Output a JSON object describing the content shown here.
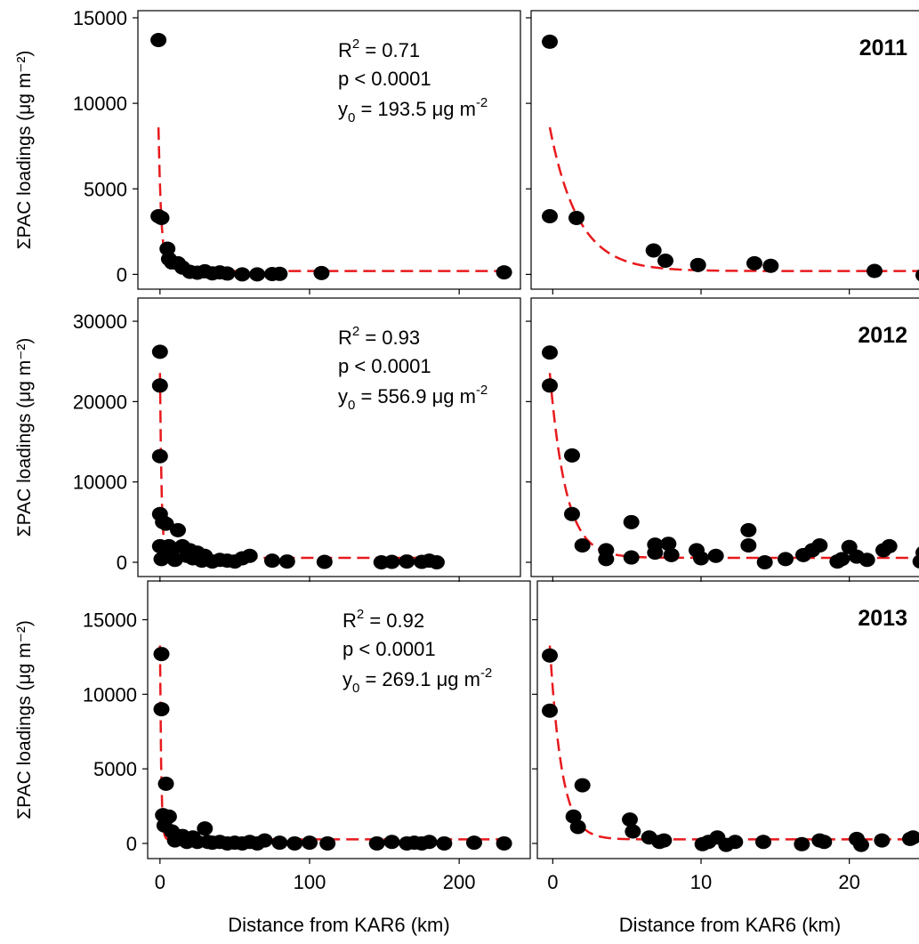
{
  "chart_data": [
    {
      "panel": "2011-full",
      "type": "scatter",
      "annotation": "",
      "ylabel": "ΣPAC loadings (μg m⁻²)",
      "xlabel": "",
      "xlim": [
        -10,
        235
      ],
      "ylim": [
        -500,
        15000
      ],
      "yticks": [
        0,
        5000,
        10000,
        15000
      ],
      "xticks": [
        0,
        100,
        200
      ],
      "show_x_labels": false,
      "stats": {
        "r2": "0.71",
        "p": "p < 0.0001",
        "y0": "193.5"
      },
      "points": [
        [
          -1,
          13700
        ],
        [
          -1,
          3400
        ],
        [
          1,
          3300
        ],
        [
          5,
          1500
        ],
        [
          6,
          900
        ],
        [
          8,
          700
        ],
        [
          12,
          650
        ],
        [
          15,
          400
        ],
        [
          20,
          150
        ],
        [
          25,
          100
        ],
        [
          30,
          180
        ],
        [
          35,
          60
        ],
        [
          40,
          120
        ],
        [
          45,
          50
        ],
        [
          55,
          0
        ],
        [
          65,
          0
        ],
        [
          75,
          20
        ],
        [
          80,
          30
        ],
        [
          108,
          80
        ],
        [
          230,
          120
        ]
      ],
      "fit": {
        "type": "exp_decay",
        "y0": 193.5,
        "A": 8400,
        "k": 0.52,
        "x_from": -1,
        "x_to": 230
      }
    },
    {
      "panel": "2011-zoom",
      "type": "scatter",
      "annotation": "2011",
      "xlabel": "",
      "xlim": [
        -0.8,
        25
      ],
      "ylim": [
        -500,
        15000
      ],
      "yticks": [
        0,
        5000,
        10000,
        15000
      ],
      "xticks": [
        0,
        10,
        20
      ],
      "show_x_labels": false,
      "show_y_labels": false,
      "points": [
        [
          -0.2,
          13600
        ],
        [
          -0.2,
          3400
        ],
        [
          1.6,
          3300
        ],
        [
          6.8,
          1400
        ],
        [
          7.6,
          800
        ],
        [
          9.8,
          550
        ],
        [
          13.6,
          650
        ],
        [
          14.7,
          500
        ],
        [
          21.7,
          200
        ],
        [
          25,
          -50
        ]
      ],
      "fit": {
        "type": "exp_decay",
        "y0": 193.5,
        "A": 8400,
        "k": 0.52,
        "x_from": -0.2,
        "x_to": 25
      }
    },
    {
      "panel": "2012-full",
      "type": "scatter",
      "annotation": "",
      "ylabel": "ΣPAC loadings (μg m⁻²)",
      "xlabel": "",
      "xlim": [
        -10,
        235
      ],
      "ylim": [
        -1000,
        32000
      ],
      "yticks": [
        0,
        10000,
        20000,
        30000
      ],
      "xticks": [
        0,
        100,
        200
      ],
      "show_x_labels": false,
      "stats": {
        "r2": "0.93",
        "p": "p < 0.0001",
        "y0": "556.9"
      },
      "points": [
        [
          0,
          26200
        ],
        [
          0,
          22000
        ],
        [
          0,
          13200
        ],
        [
          0,
          6000
        ],
        [
          2,
          5000
        ],
        [
          4,
          4800
        ],
        [
          6,
          2000
        ],
        [
          8,
          1500
        ],
        [
          12,
          4000
        ],
        [
          10,
          300
        ],
        [
          15,
          2000
        ],
        [
          18,
          800
        ],
        [
          20,
          1500
        ],
        [
          22,
          500
        ],
        [
          25,
          1200
        ],
        [
          28,
          200
        ],
        [
          30,
          800
        ],
        [
          35,
          100
        ],
        [
          40,
          300
        ],
        [
          45,
          200
        ],
        [
          50,
          100
        ],
        [
          55,
          500
        ],
        [
          60,
          800
        ],
        [
          75,
          200
        ],
        [
          85,
          100
        ],
        [
          110,
          50
        ],
        [
          148,
          0
        ],
        [
          155,
          50
        ],
        [
          165,
          100
        ],
        [
          175,
          50
        ],
        [
          180,
          200
        ],
        [
          185,
          0
        ],
        [
          0,
          2000
        ],
        [
          1,
          400
        ]
      ],
      "fit": {
        "type": "exp_decay",
        "y0": 556.9,
        "A": 23000,
        "k": 0.92,
        "x_from": 0,
        "x_to": 185
      }
    },
    {
      "panel": "2012-zoom",
      "type": "scatter",
      "annotation": "2012",
      "xlabel": "",
      "xlim": [
        -0.8,
        25
      ],
      "ylim": [
        -1000,
        32000
      ],
      "yticks": [
        0,
        10000,
        20000,
        30000
      ],
      "xticks": [
        0,
        10,
        20
      ],
      "show_x_labels": false,
      "show_y_labels": false,
      "points": [
        [
          -0.2,
          26100
        ],
        [
          -0.2,
          22000
        ],
        [
          1.3,
          13300
        ],
        [
          1.3,
          6000
        ],
        [
          2,
          2100
        ],
        [
          3.6,
          1500
        ],
        [
          3.6,
          400
        ],
        [
          5.3,
          5000
        ],
        [
          5.3,
          600
        ],
        [
          6.9,
          1200
        ],
        [
          6.9,
          2200
        ],
        [
          7.8,
          2300
        ],
        [
          8,
          900
        ],
        [
          9.7,
          1500
        ],
        [
          10,
          500
        ],
        [
          11,
          800
        ],
        [
          13.2,
          4000
        ],
        [
          13.2,
          2100
        ],
        [
          14.3,
          0
        ],
        [
          15.7,
          400
        ],
        [
          16.9,
          900
        ],
        [
          17.5,
          1500
        ],
        [
          18,
          2100
        ],
        [
          19.2,
          100
        ],
        [
          19.5,
          400
        ],
        [
          20,
          1900
        ],
        [
          20.5,
          700
        ],
        [
          21.2,
          300
        ],
        [
          22.3,
          1500
        ],
        [
          22.7,
          2000
        ],
        [
          24.8,
          100
        ],
        [
          25,
          1200
        ]
      ],
      "fit": {
        "type": "exp_decay",
        "y0": 556.9,
        "A": 23000,
        "k": 0.92,
        "x_from": -0.2,
        "x_to": 25
      }
    },
    {
      "panel": "2013-full",
      "type": "scatter",
      "annotation": "",
      "ylabel": "ΣPAC loadings (μg m⁻²)",
      "xlabel": "Distance from KAR6 (km)",
      "xlim": [
        -10,
        235
      ],
      "ylim": [
        -600,
        17000
      ],
      "yticks": [
        0,
        5000,
        10000,
        15000
      ],
      "xticks": [
        0,
        100,
        200
      ],
      "show_x_labels": true,
      "stats": {
        "r2": "0.92",
        "p": "p < 0.0001",
        "y0": "269.1"
      },
      "points": [
        [
          1,
          12700
        ],
        [
          1,
          9000
        ],
        [
          4,
          4000
        ],
        [
          2,
          1900
        ],
        [
          6,
          1800
        ],
        [
          3,
          1200
        ],
        [
          8,
          800
        ],
        [
          10,
          200
        ],
        [
          15,
          500
        ],
        [
          18,
          100
        ],
        [
          22,
          400
        ],
        [
          25,
          100
        ],
        [
          30,
          1000
        ],
        [
          32,
          100
        ],
        [
          35,
          50
        ],
        [
          40,
          100
        ],
        [
          45,
          0
        ],
        [
          50,
          50
        ],
        [
          55,
          0
        ],
        [
          60,
          100
        ],
        [
          65,
          0
        ],
        [
          70,
          200
        ],
        [
          80,
          50
        ],
        [
          90,
          0
        ],
        [
          100,
          50
        ],
        [
          112,
          0
        ],
        [
          145,
          0
        ],
        [
          155,
          100
        ],
        [
          165,
          0
        ],
        [
          170,
          50
        ],
        [
          175,
          0
        ],
        [
          180,
          100
        ],
        [
          190,
          0
        ],
        [
          210,
          50
        ],
        [
          230,
          0
        ]
      ],
      "fit": {
        "type": "exp_decay",
        "y0": 269.1,
        "A": 13000,
        "k": 1.25,
        "x_from": 0,
        "x_to": 230
      }
    },
    {
      "panel": "2013-zoom",
      "type": "scatter",
      "annotation": "2013",
      "xlabel": "Distance from KAR6 (km)",
      "xlim": [
        -0.8,
        25
      ],
      "ylim": [
        -600,
        17000
      ],
      "yticks": [
        0,
        5000,
        10000,
        15000
      ],
      "xticks": [
        0,
        10,
        20
      ],
      "show_x_labels": true,
      "show_y_labels": false,
      "points": [
        [
          -0.2,
          12600
        ],
        [
          -0.2,
          8900
        ],
        [
          1.4,
          1800
        ],
        [
          1.7,
          1100
        ],
        [
          2,
          3900
        ],
        [
          5.2,
          1600
        ],
        [
          5.4,
          800
        ],
        [
          6.5,
          400
        ],
        [
          7.2,
          100
        ],
        [
          7.5,
          200
        ],
        [
          10.1,
          -50
        ],
        [
          10.5,
          100
        ],
        [
          11.1,
          400
        ],
        [
          11.7,
          -100
        ],
        [
          12.3,
          100
        ],
        [
          14.2,
          100
        ],
        [
          16.8,
          -50
        ],
        [
          18,
          200
        ],
        [
          18.3,
          100
        ],
        [
          20.5,
          300
        ],
        [
          20.8,
          -100
        ],
        [
          22.2,
          200
        ],
        [
          24.1,
          300
        ],
        [
          24.3,
          400
        ]
      ],
      "fit": {
        "type": "exp_decay",
        "y0": 269.1,
        "A": 13000,
        "k": 1.25,
        "x_from": -0.2,
        "x_to": 25
      }
    }
  ],
  "labels": {
    "y0_unit": "μg m",
    "y0_exp": "-2"
  },
  "colors": {
    "fit_line": "#e8191c",
    "points": "#000000",
    "axis": "#000000"
  }
}
